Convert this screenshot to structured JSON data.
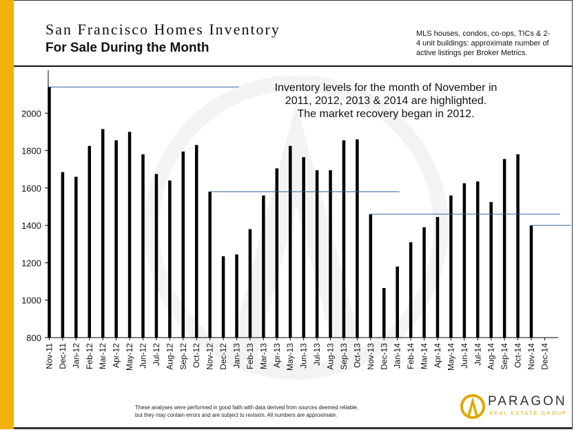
{
  "header": {
    "title": "San Francisco Homes Inventory",
    "subtitle": "For Sale During the Month",
    "note": "MLS houses, condos, co-ops, TICs & 2-4 unit buildings: approximate number of active listings per Broker Metrics."
  },
  "annotation": {
    "lines": [
      "Inventory levels for the month of November in",
      "2011, 2012, 2013 & 2014 are highlighted.",
      "The market recovery began in 2012."
    ]
  },
  "footer": {
    "lines": [
      "These analyses were performed in good faith with data derived from sources deemed reliable,",
      "but they may contain errors and are subject to revision. All numbers are approximate."
    ]
  },
  "logo": {
    "name": "PARAGON",
    "tagline": "REAL ESTATE GROUP"
  },
  "colors": {
    "accent_bar": "#f2b20c",
    "bars": "#000000",
    "highlight_lines": "#2e5f9e"
  },
  "chart_data": {
    "type": "bar",
    "categories": [
      "Nov-11",
      "Dec-11",
      "Jan-12",
      "Feb-12",
      "Mar-12",
      "Apr-12",
      "May-12",
      "Jun-12",
      "Jul-12",
      "Aug-12",
      "Sep-12",
      "Oct-12",
      "Nov-12",
      "Dec-12",
      "Jan-13",
      "Feb-13",
      "Mar-13",
      "Apr-13",
      "May-13",
      "Jun-13",
      "Jul-13",
      "Aug-13",
      "Sep-13",
      "Oct-13",
      "Nov-13",
      "Dec-13",
      "Jan-14",
      "Feb-14",
      "Mar-14",
      "Apr-14",
      "May-14",
      "Jun-14",
      "Jul-14",
      "Aug-14",
      "Sep-14",
      "Oct-14",
      "Nov-14",
      "Dec-14"
    ],
    "values": [
      2140,
      1685,
      1660,
      1825,
      1915,
      1855,
      1900,
      1780,
      1675,
      1640,
      1795,
      1830,
      1580,
      1235,
      1245,
      1380,
      1560,
      1705,
      1825,
      1765,
      1695,
      1695,
      1855,
      1860,
      1460,
      1065,
      1180,
      1310,
      1390,
      1445,
      1560,
      1625,
      1635,
      1525,
      1755,
      1780,
      1400,
      null
    ],
    "highlighted": [
      "Nov-11",
      "Nov-12",
      "Nov-13",
      "Nov-14"
    ],
    "ylim": [
      800,
      2200
    ],
    "yticks": [
      800,
      1000,
      1200,
      1400,
      1600,
      1800,
      2000
    ],
    "grid": false,
    "legend": "none"
  }
}
